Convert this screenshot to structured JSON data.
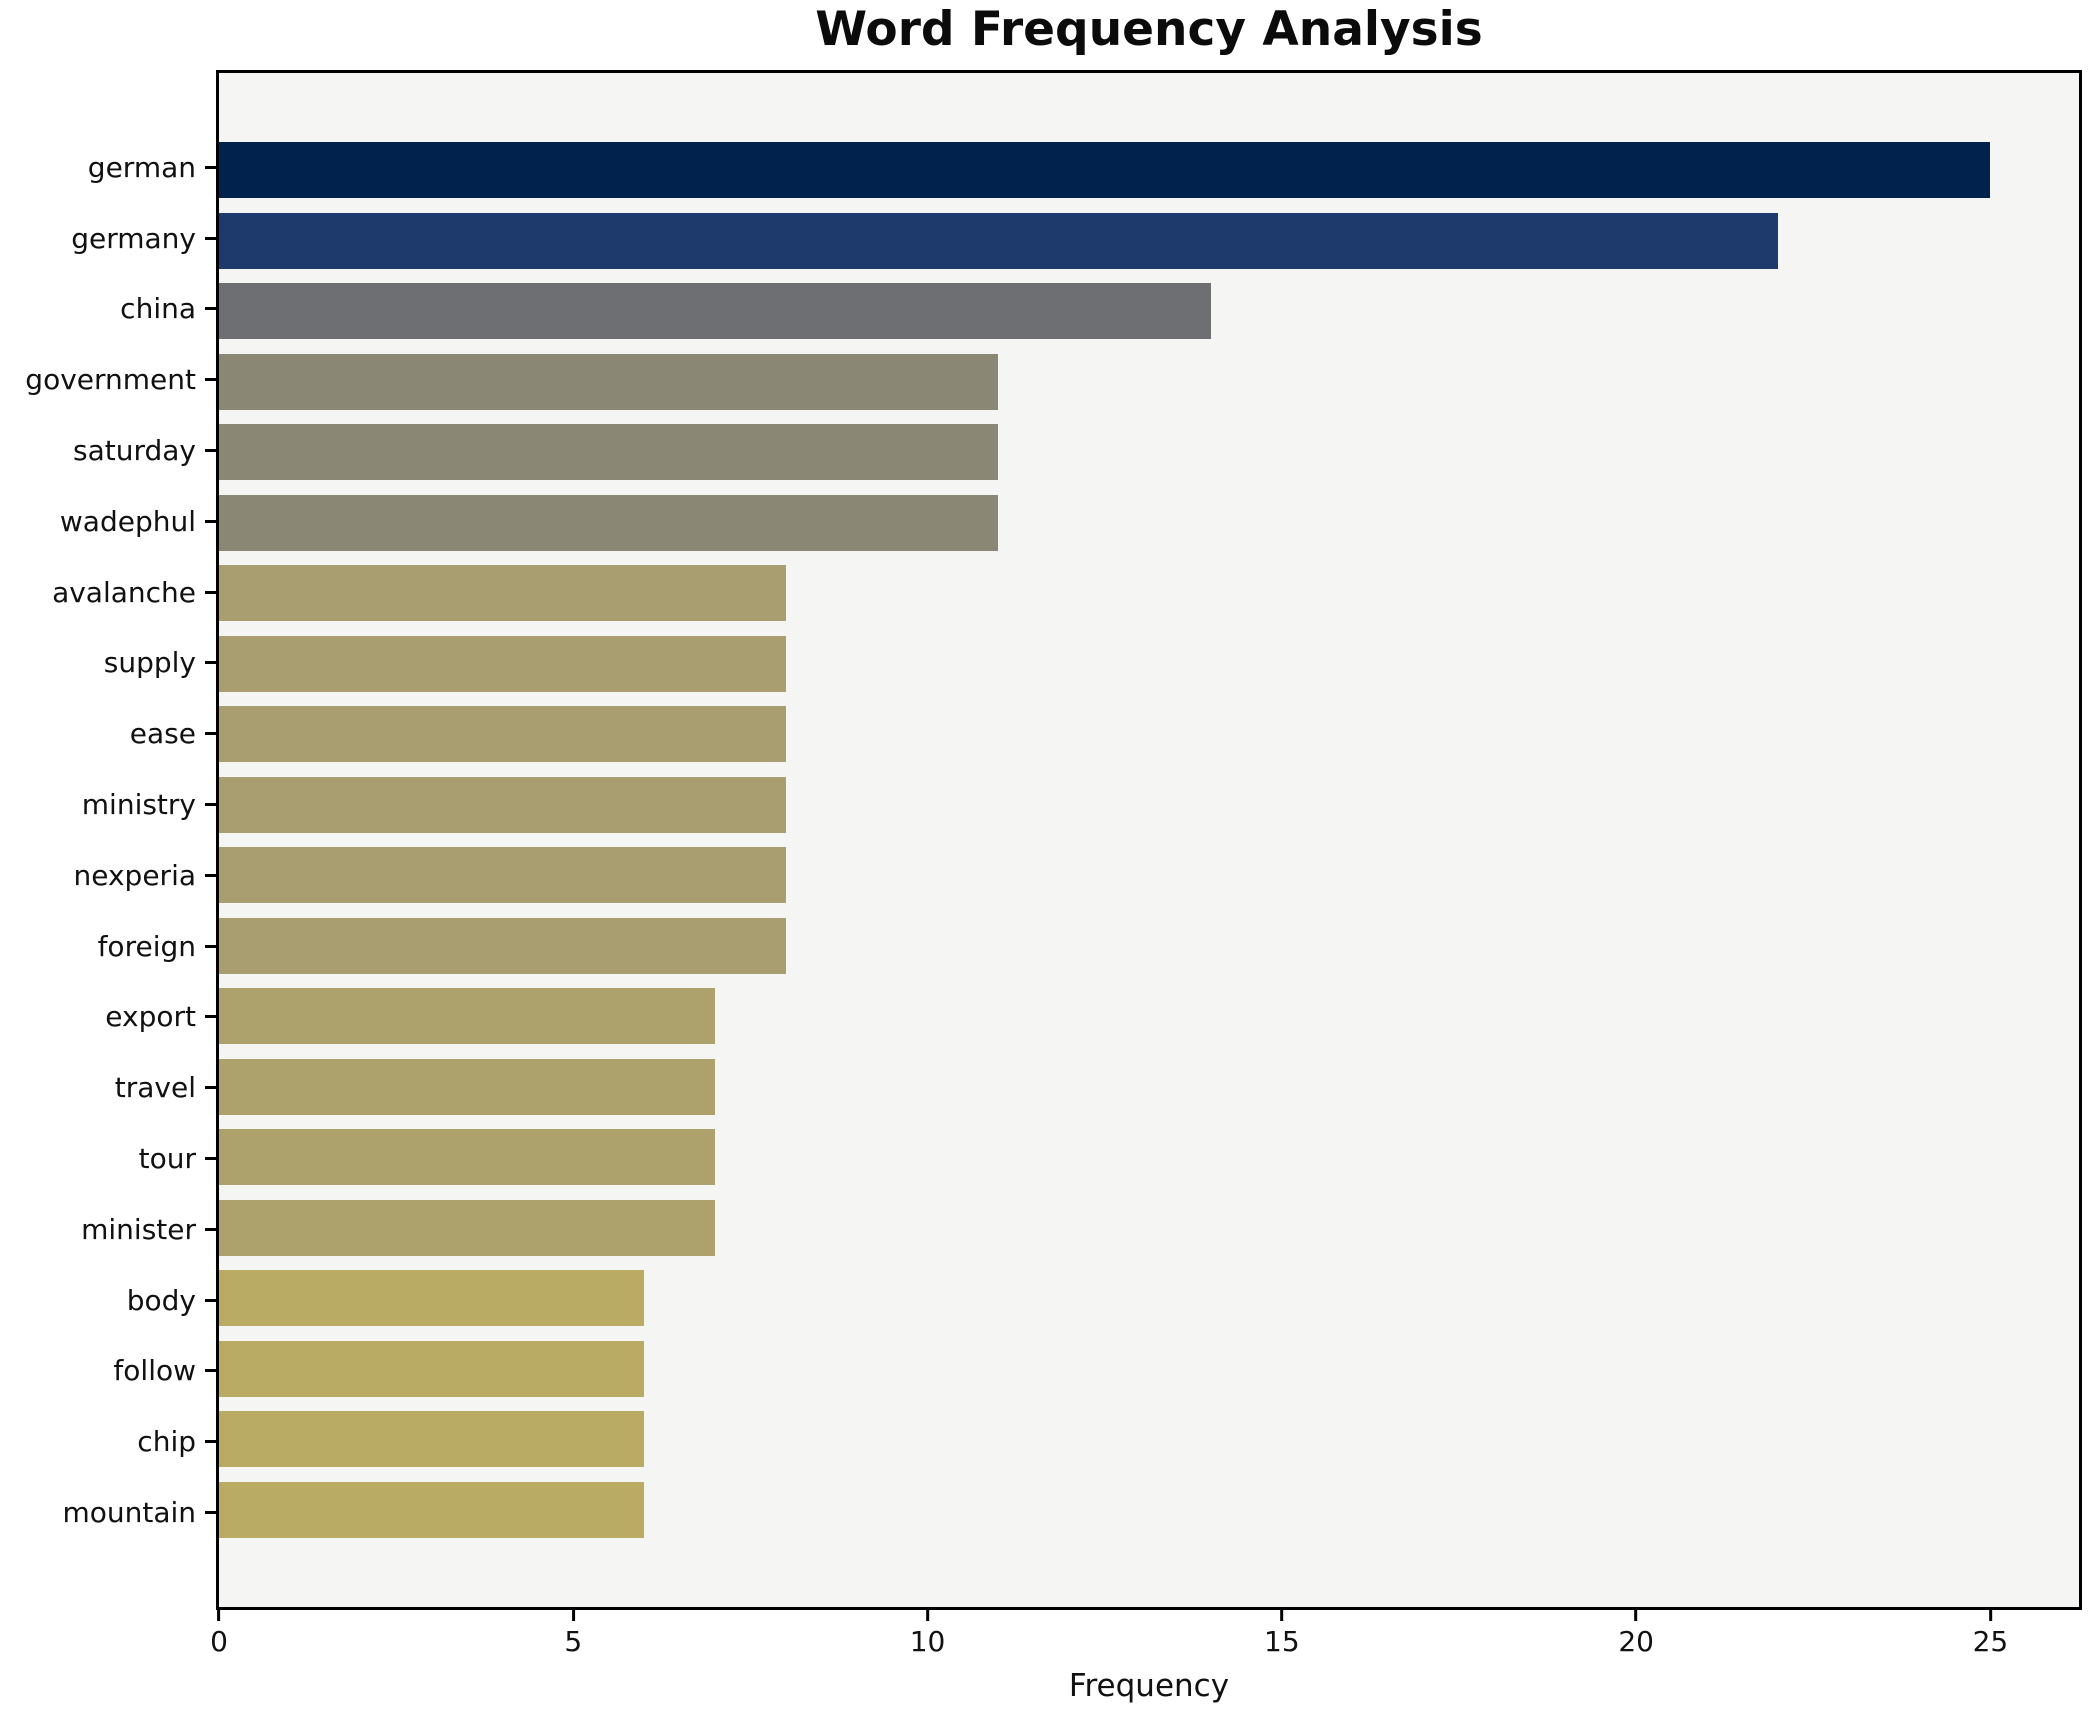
{
  "title": "Word Frequency Analysis",
  "xlabel": "Frequency",
  "chart_data": {
    "type": "bar",
    "orientation": "horizontal",
    "title": "Word Frequency Analysis",
    "xlabel": "Frequency",
    "ylabel": "",
    "categories": [
      "german",
      "germany",
      "china",
      "government",
      "saturday",
      "wadephul",
      "avalanche",
      "supply",
      "ease",
      "ministry",
      "nexperia",
      "foreign",
      "export",
      "travel",
      "tour",
      "minister",
      "body",
      "follow",
      "chip",
      "mountain"
    ],
    "values": [
      25,
      22,
      14,
      11,
      11,
      11,
      8,
      8,
      8,
      8,
      8,
      8,
      7,
      7,
      7,
      7,
      6,
      6,
      6,
      6
    ],
    "bar_colors": [
      "#01224d",
      "#1e3a6d",
      "#6e6f72",
      "#8a8775",
      "#8a8775",
      "#8a8775",
      "#a89e70",
      "#a89e70",
      "#a89e70",
      "#a89e70",
      "#a89e70",
      "#a89e70",
      "#ada26b",
      "#ada26b",
      "#ada26b",
      "#ada26b",
      "#b9aa64",
      "#b9aa64",
      "#b9aa64",
      "#b9aa64"
    ],
    "xticks": [
      0,
      5,
      10,
      15,
      20,
      25
    ],
    "xlim": [
      0,
      26.25
    ],
    "grid": false,
    "legend": "none",
    "plot_background": "#f5f5f3",
    "figure_background": "#ffffff",
    "spine_color": "#000000",
    "text_color": "#111111"
  }
}
